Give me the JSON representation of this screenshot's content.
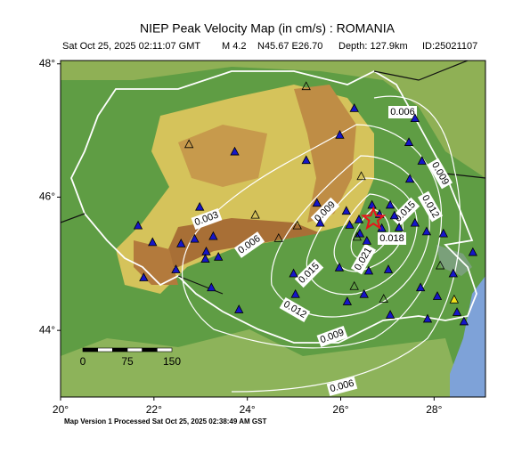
{
  "map": {
    "title": "NIEP Peak Velocity Map (in cm/s) : ROMANIA",
    "subtitle": {
      "time": "Sat Oct 25, 2025 02:11:07 GMT",
      "magnitude": "M 4.2",
      "location": "N45.67 E26.70",
      "depth": "Depth: 127.9km",
      "id": "ID:25021107"
    },
    "footer": "Map Version 1 Processed Sat Oct 25, 2025 02:38:49 AM GST",
    "xlim": [
      20,
      29.1
    ],
    "ylim": [
      43,
      48.05
    ],
    "xticks": [
      {
        "value": 20,
        "label": "20°"
      },
      {
        "value": 22,
        "label": "22°"
      },
      {
        "value": 24,
        "label": "24°"
      },
      {
        "value": 26,
        "label": "26°"
      },
      {
        "value": 28,
        "label": "28°"
      }
    ],
    "yticks": [
      {
        "value": 44,
        "label": "44°"
      },
      {
        "value": 46,
        "label": "46°"
      },
      {
        "value": 48,
        "label": "48°"
      }
    ],
    "epicenter": [
      26.7,
      45.67
    ],
    "scale_bar": [
      0,
      75,
      150
    ],
    "contour_labels": [
      0.006,
      0.009,
      0.012,
      0.015,
      0.018,
      0.021,
      0.009,
      0.003,
      0.006,
      0.015,
      0.012,
      0.009,
      0.006
    ],
    "stations": [
      [
        26.29,
        47.33
      ],
      [
        27.59,
        47.18
      ],
      [
        23.73,
        46.68
      ],
      [
        25.98,
        46.93
      ],
      [
        27.46,
        46.82
      ],
      [
        27.74,
        46.54
      ],
      [
        27.48,
        46.27
      ],
      [
        25.26,
        46.55
      ],
      [
        22.98,
        45.85
      ],
      [
        26.67,
        45.88
      ],
      [
        26.83,
        45.74
      ],
      [
        27.06,
        45.88
      ],
      [
        27.15,
        45.72
      ],
      [
        26.39,
        45.66
      ],
      [
        26.19,
        45.58
      ],
      [
        25.49,
        45.91
      ],
      [
        26.12,
        45.79
      ],
      [
        26.41,
        45.45
      ],
      [
        26.88,
        45.53
      ],
      [
        25.56,
        45.61
      ],
      [
        26.56,
        45.34
      ],
      [
        27.25,
        45.54
      ],
      [
        27.59,
        45.61
      ],
      [
        27.84,
        45.48
      ],
      [
        28.2,
        45.45
      ],
      [
        28.83,
        45.17
      ],
      [
        21.66,
        45.57
      ],
      [
        21.97,
        45.32
      ],
      [
        22.87,
        45.37
      ],
      [
        23.27,
        45.41
      ],
      [
        23.12,
        45.18
      ],
      [
        23.1,
        45.07
      ],
      [
        23.38,
        45.1
      ],
      [
        22.58,
        45.3
      ],
      [
        22.47,
        44.91
      ],
      [
        21.78,
        44.79
      ],
      [
        23.23,
        44.64
      ],
      [
        23.82,
        44.31
      ],
      [
        24.99,
        44.85
      ],
      [
        25.03,
        44.54
      ],
      [
        25.97,
        44.94
      ],
      [
        26.6,
        44.89
      ],
      [
        27.02,
        44.91
      ],
      [
        28.41,
        44.85
      ],
      [
        26.14,
        44.43
      ],
      [
        26.5,
        44.54
      ],
      [
        27.71,
        44.64
      ],
      [
        28.07,
        44.51
      ],
      [
        27.86,
        44.17
      ],
      [
        27.06,
        44.23
      ],
      [
        28.49,
        44.27
      ],
      [
        28.64,
        44.13
      ]
    ],
    "open_stations": [
      [
        25.26,
        47.66
      ],
      [
        22.75,
        46.79
      ],
      [
        26.44,
        46.31
      ],
      [
        24.17,
        45.73
      ],
      [
        25.07,
        45.57
      ],
      [
        24.67,
        45.38
      ],
      [
        26.35,
        45.4
      ],
      [
        26.29,
        44.66
      ],
      [
        26.92,
        44.47
      ],
      [
        28.13,
        44.97
      ]
    ],
    "yellow_stations": [
      [
        28.43,
        44.46
      ]
    ]
  }
}
